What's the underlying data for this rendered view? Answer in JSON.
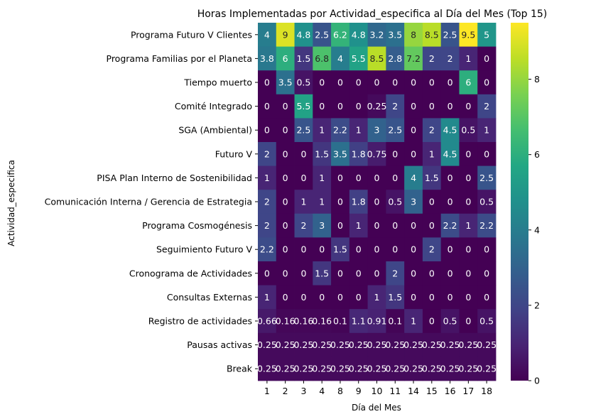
{
  "chart_data": {
    "type": "heatmap",
    "title": "Horas Implementadas por Actividad_especifica al Día del Mes (Top 15)",
    "xlabel": "Día del Mes",
    "ylabel": "Actividad_especifica",
    "colormap": "viridis",
    "colorbar": {
      "range": [
        0,
        9.5
      ],
      "ticks": [
        "0",
        "2",
        "4",
        "6",
        "8"
      ]
    },
    "x": [
      "1",
      "2",
      "3",
      "4",
      "8",
      "9",
      "10",
      "11",
      "14",
      "15",
      "16",
      "17",
      "18"
    ],
    "y": [
      "Programa Futuro V Clientes",
      "Programa Familias por el Planeta",
      "Tiempo muerto",
      "Comité Integrado",
      "SGA (Ambiental)",
      "Futuro V",
      "PISA Plan Interno de Sostenibilidad",
      "Comunicación Interna / Gerencia de Estrategia",
      "Programa Cosmogénesis",
      "Seguimiento Futuro V",
      "Cronograma de Actividades",
      "Consultas Externas",
      "Registro de actividades",
      "Pausas activas",
      "Break"
    ],
    "values": [
      [
        4,
        9,
        4.8,
        2.5,
        6.2,
        4.8,
        3.2,
        3.5,
        8,
        8.5,
        2.5,
        9.5,
        5
      ],
      [
        3.8,
        6,
        1.5,
        6.8,
        4,
        5.5,
        8.5,
        2.8,
        7.2,
        2,
        2,
        1,
        0
      ],
      [
        0,
        3.5,
        0.5,
        0,
        0,
        0,
        0,
        0,
        0,
        0,
        0,
        6,
        0
      ],
      [
        0,
        0,
        5.5,
        0,
        0,
        0,
        0.25,
        2,
        0,
        0,
        0,
        0,
        2
      ],
      [
        0,
        0,
        2.5,
        1,
        2.2,
        1,
        3,
        2.5,
        0,
        2,
        4.5,
        0.5,
        1
      ],
      [
        2,
        0,
        0,
        1.5,
        3.5,
        1.8,
        0.75,
        0,
        0,
        1,
        4.5,
        0,
        0
      ],
      [
        1,
        0,
        0,
        1,
        0,
        0,
        0,
        0,
        4,
        1.5,
        0,
        0,
        2.5
      ],
      [
        2,
        0,
        1,
        1,
        0,
        1.8,
        0,
        0.5,
        3,
        0,
        0,
        0,
        0.5
      ],
      [
        2,
        0,
        2,
        3,
        0,
        1,
        0,
        0,
        0,
        0,
        2.2,
        1,
        2.2
      ],
      [
        2.2,
        0,
        0,
        0,
        1.5,
        0,
        0,
        0,
        0,
        2,
        0,
        0,
        0
      ],
      [
        0,
        0,
        0,
        1.5,
        0,
        0,
        0,
        2,
        0,
        0,
        0,
        0,
        0
      ],
      [
        1,
        0,
        0,
        0,
        0,
        0,
        1,
        1.5,
        0,
        0,
        0,
        0,
        0
      ],
      [
        0.66,
        0.16,
        0.16,
        0.16,
        0.1,
        1.1,
        0.91,
        0.1,
        1,
        0,
        0.5,
        0,
        0.5
      ],
      [
        0.25,
        0.25,
        0.25,
        0.25,
        0.25,
        0.25,
        0.25,
        0.25,
        0.25,
        0.25,
        0.25,
        0.25,
        0.25
      ],
      [
        0.25,
        0.25,
        0.25,
        0.25,
        0.25,
        0.25,
        0.25,
        0.25,
        0.25,
        0.25,
        0.25,
        0.25,
        0.25
      ]
    ]
  }
}
